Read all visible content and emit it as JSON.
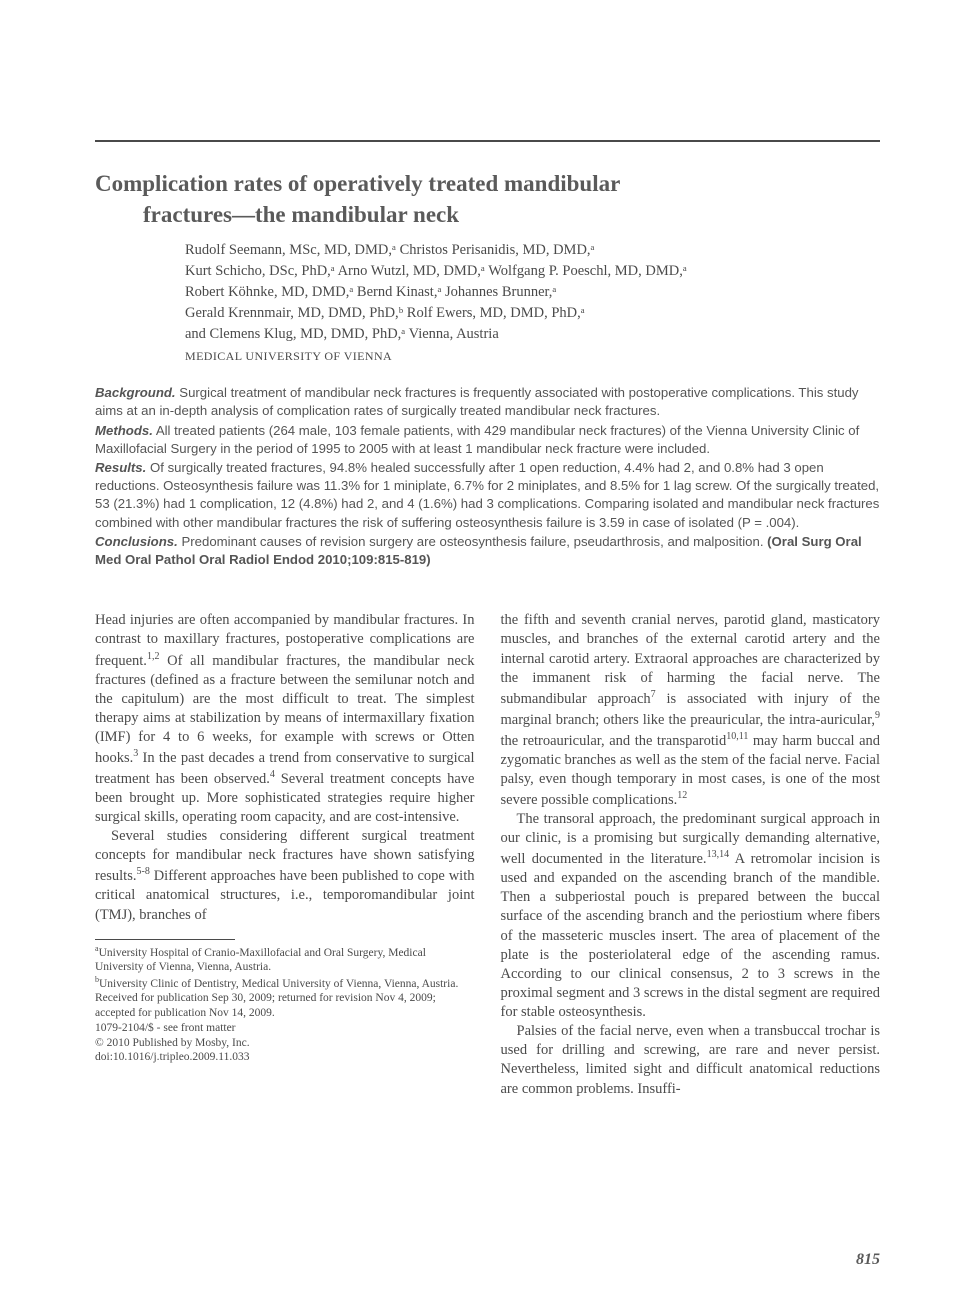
{
  "title_line1": "Complication rates of operatively treated mandibular",
  "title_line2": "fractures—the mandibular neck",
  "authors_html": "Rudolf Seemann, MSc, MD, DMD,ᵃ Christos Perisanidis, MD, DMD,ᵃ\nKurt Schicho, DSc, PhD,ᵃ Arno Wutzl, MD, DMD,ᵃ Wolfgang P. Poeschl, MD, DMD,ᵃ\nRobert Köhnke, MD, DMD,ᵃ Bernd Kinast,ᵃ Johannes Brunner,ᵃ\nGerald Krennmair, MD, DMD, PhD,ᵇ Rolf Ewers, MD, DMD, PhD,ᵃ\nand Clemens Klug, MD, DMD, PhD,ᵃ Vienna, Austria",
  "affiliation": "MEDICAL UNIVERSITY OF VIENNA",
  "abstract": {
    "background": "Surgical treatment of mandibular neck fractures is frequently associated with postoperative complications. This study aims at an in-depth analysis of complication rates of surgically treated mandibular neck fractures.",
    "methods": "All treated patients (264 male, 103 female patients, with 429 mandibular neck fractures) of the Vienna University Clinic of Maxillofacial Surgery in the period of 1995 to 2005 with at least 1 mandibular neck fracture were included.",
    "results": "Of surgically treated fractures, 94.8% healed successfully after 1 open reduction, 4.4% had 2, and 0.8% had 3 open reductions. Osteosynthesis failure was 11.3% for 1 miniplate, 6.7% for 2 miniplates, and 8.5% for 1 lag screw. Of the surgically treated, 53 (21.3%) had 1 complication, 12 (4.8%) had 2, and 4 (1.6%) had 3 complications. Comparing isolated and mandibular neck fractures combined with other mandibular fractures the risk of suffering osteosynthesis failure is 3.59 in case of isolated (P = .004).",
    "conclusions": "Predominant causes of revision surgery are osteosynthesis failure, pseudarthrosis, and malposition.",
    "citation": "(Oral Surg Oral Med Oral Pathol Oral Radiol Endod 2010;109:815-819)"
  },
  "col1": {
    "p1a": "Head injuries are often accompanied by mandibular fractures. In contrast to maxillary fractures, postoperative complications are frequent.",
    "s1": "1,2",
    "p1b": " Of all mandibular fractures, the mandibular neck fractures (defined as a fracture between the semilunar notch and the capitulum) are the most difficult to treat. The simplest therapy aims at stabilization by means of intermaxillary fixation (IMF) for 4 to 6 weeks, for example with screws or Otten hooks.",
    "s2": "3",
    "p1c": " In the past decades a trend from conservative to surgical treatment has been observed.",
    "s3": "4",
    "p1d": " Several treatment concepts have been brought up. More sophisticated strategies require higher surgical skills, operating room capacity, and are cost-intensive.",
    "p2a": "Several studies considering different surgical treatment concepts for mandibular neck fractures have shown satisfying results.",
    "s4": "5-8",
    "p2b": " Different approaches have been published to cope with critical anatomical structures, i.e., temporomandibular joint (TMJ), branches of"
  },
  "col2": {
    "p1a": "the fifth and seventh cranial nerves, parotid gland, masticatory muscles, and branches of the external carotid artery and the internal carotid artery. Extraoral approaches are characterized by the immanent risk of harming the facial nerve. The submandibular approach",
    "s1": "7",
    "p1b": " is associated with injury of the marginal branch; others like the preauricular, the intra-auricular,",
    "s2": "9",
    "p1c": " the retroauricular, and the transparotid",
    "s3": "10,11",
    "p1d": " may harm buccal and zygomatic branches as well as the stem of the facial nerve. Facial palsy, even though temporary in most cases, is one of the most severe possible complications.",
    "s4": "12",
    "p2a": "The transoral approach, the predominant surgical approach in our clinic, is a promising but surgically demanding alternative, well documented in the literature.",
    "s5": "13,14",
    "p2b": " A retromolar incision is used and expanded on the ascending branch of the mandible. Then a subperiostal pouch is prepared between the buccal surface of the ascending branch and the periostium where fibers of the masseteric muscles insert. The area of placement of the plate is the posteriolateral edge of the ascending ramus. According to our clinical consensus, 2 to 3 screws in the proximal segment and 3 screws in the distal segment are required for stable osteosynthesis.",
    "p3": "Palsies of the facial nerve, even when a transbuccal trochar is used for drilling and screwing, are rare and never persist. Nevertheless, limited sight and difficult anatomical reductions are common problems. Insuffi-"
  },
  "footnotes": {
    "a": "University Hospital of Cranio-Maxillofacial and Oral Surgery, Medical University of Vienna, Vienna, Austria.",
    "b": "University Clinic of Dentistry, Medical University of Vienna, Vienna, Austria.",
    "received": "Received for publication Sep 30, 2009; returned for revision Nov 4, 2009; accepted for publication Nov 14, 2009.",
    "issn": "1079-2104/$ - see front matter",
    "copyright": "© 2010 Published by Mosby, Inc.",
    "doi": "doi:10.1016/j.tripleo.2009.11.033"
  },
  "page_number": "815",
  "labels": {
    "background": "Background.",
    "methods": "Methods.",
    "results": "Results.",
    "conclusions": "Conclusions."
  }
}
